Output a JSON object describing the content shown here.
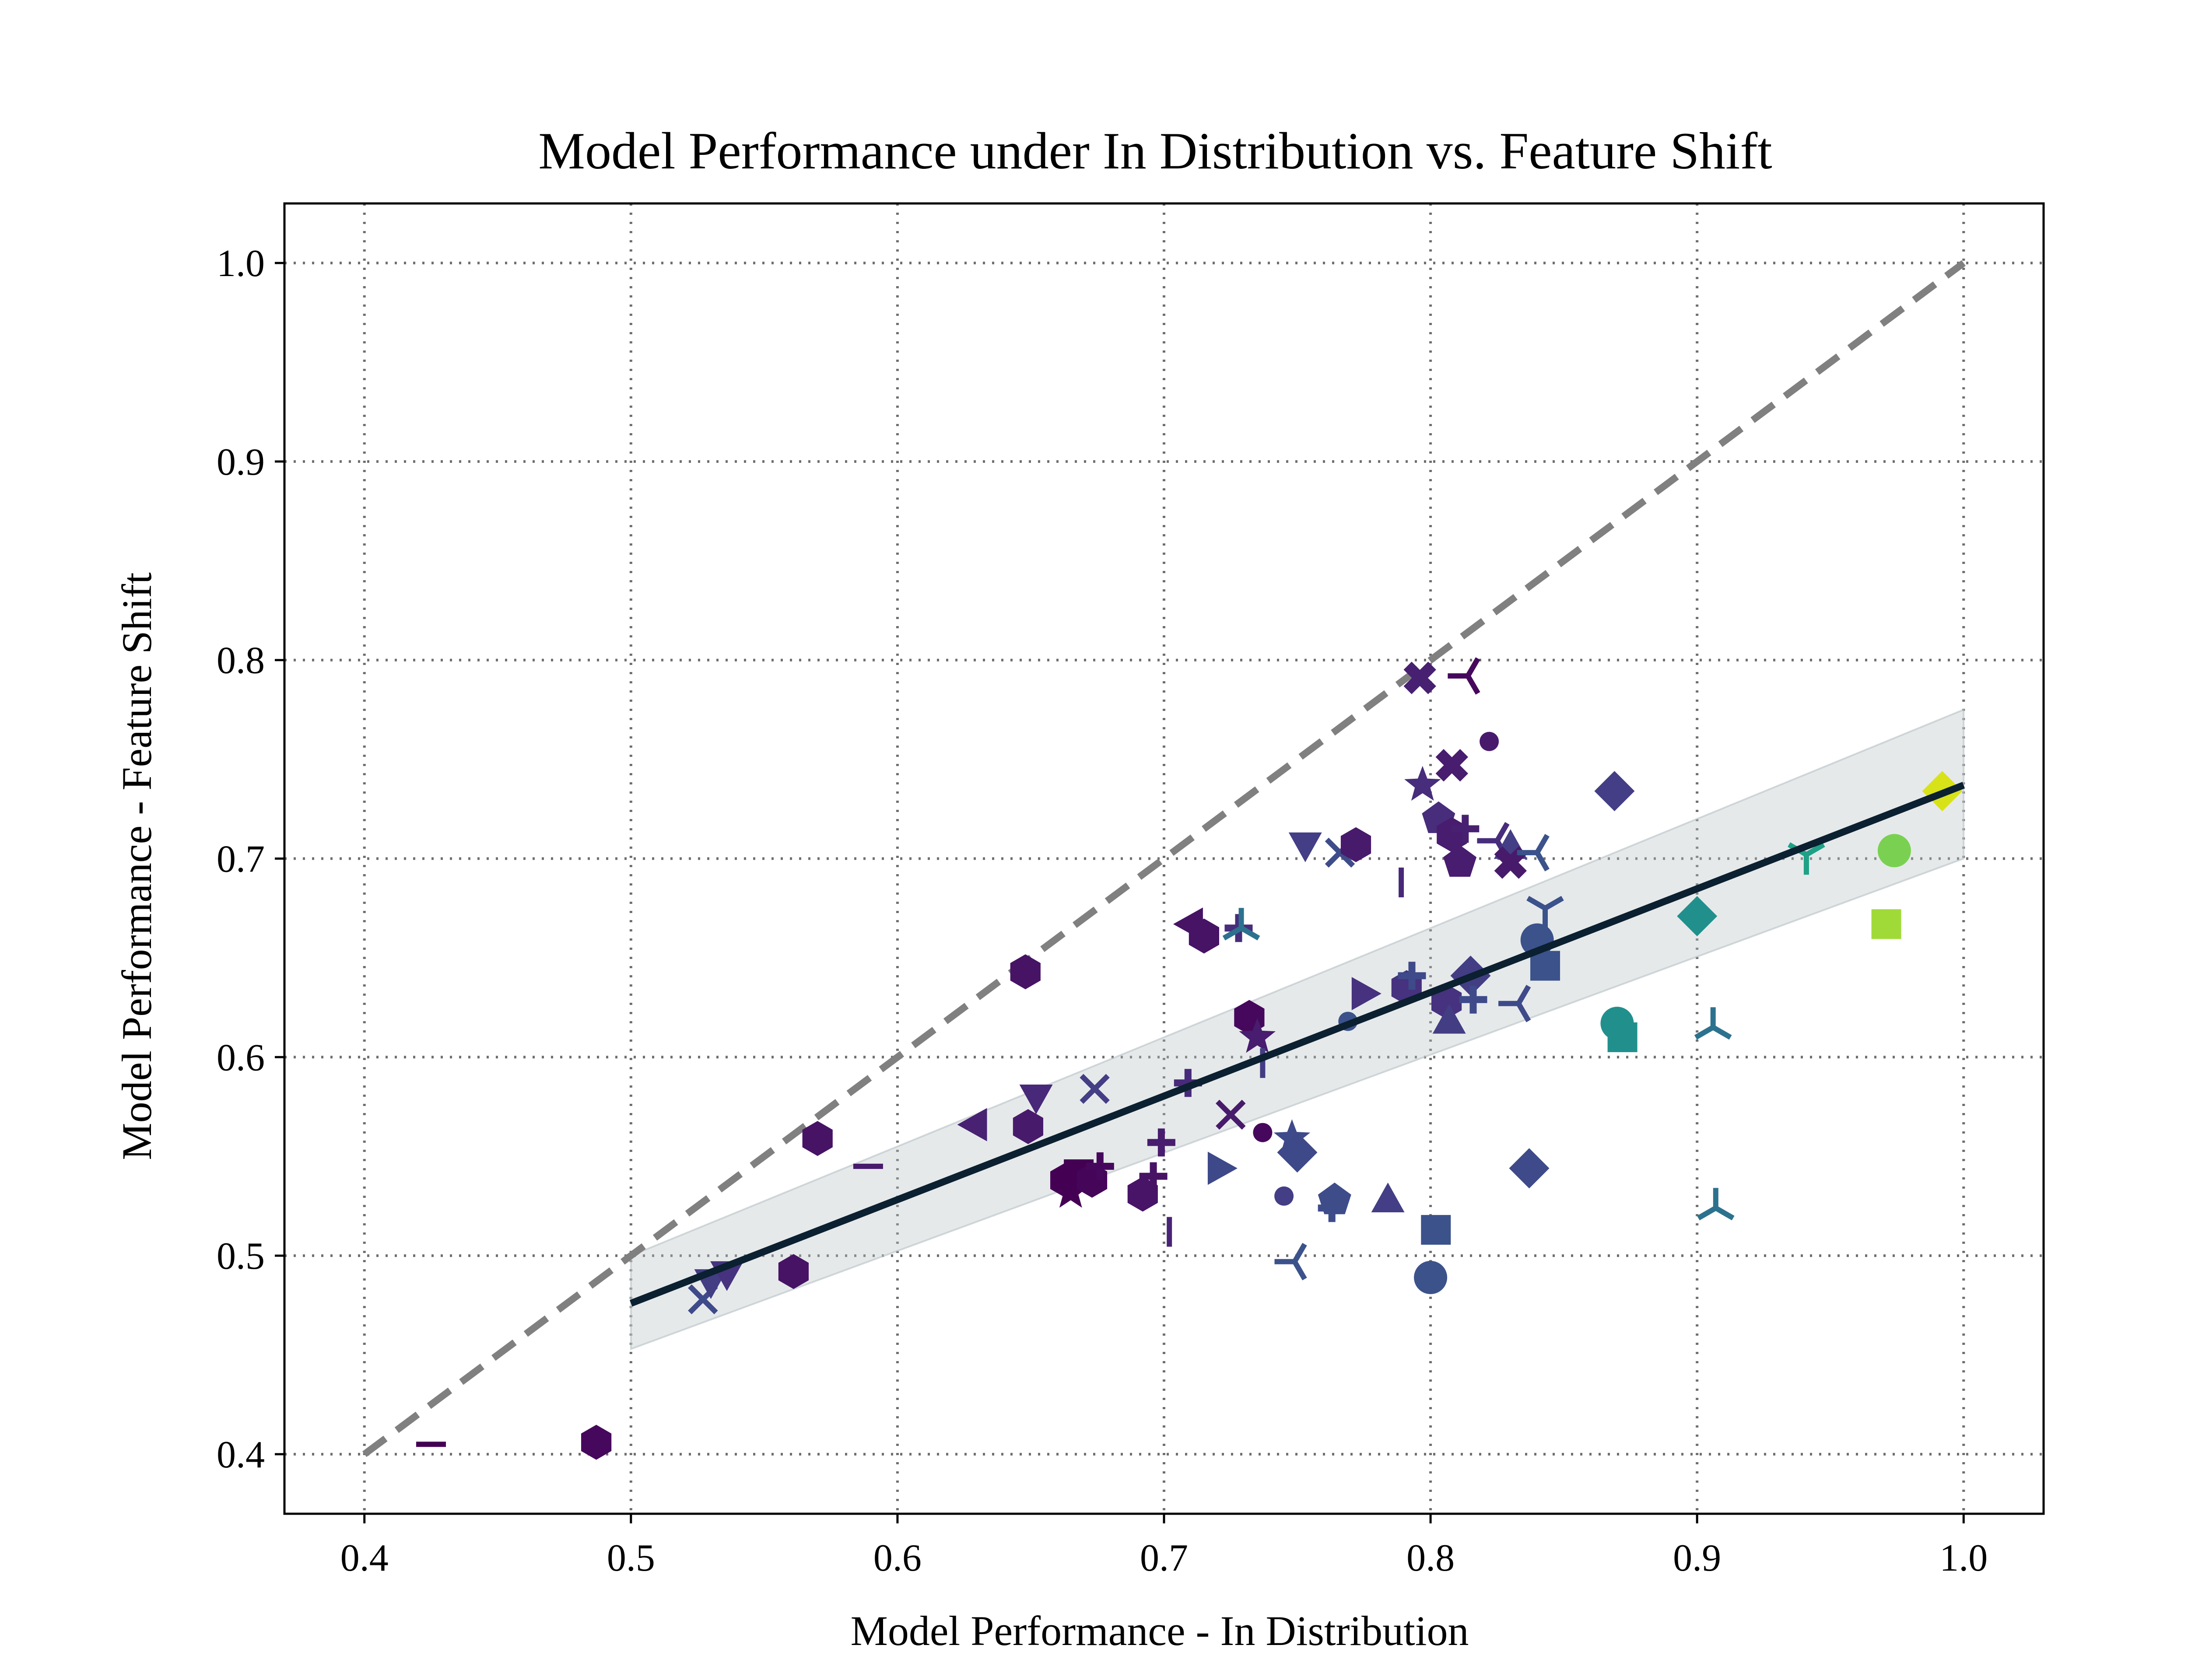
{
  "chart_data": {
    "type": "scatter",
    "title": "Model Performance under In Distribution vs. Feature Shift",
    "xlabel": "Model Performance - In Distribution",
    "ylabel": "Model Performance - Feature Shift",
    "xlim": [
      0.37,
      1.03
    ],
    "ylim": [
      0.37,
      1.03
    ],
    "xticks": [
      "0.4",
      "0.5",
      "0.6",
      "0.7",
      "0.8",
      "0.9",
      "1.0"
    ],
    "yticks": [
      "0.4",
      "0.5",
      "0.6",
      "0.7",
      "0.8",
      "0.9",
      "1.0"
    ],
    "grid": true,
    "identity_line": {
      "x": [
        0.4,
        1.0
      ],
      "y": [
        0.4,
        1.0
      ],
      "color": "#808080",
      "style": "dashed"
    },
    "regression_line": {
      "x": [
        0.5,
        1.0
      ],
      "y": [
        0.476,
        0.737
      ],
      "color": "#0b2030"
    },
    "confidence_band": {
      "x": [
        0.5,
        1.0
      ],
      "upper": [
        0.5,
        0.775
      ],
      "lower": [
        0.453,
        0.7
      ],
      "color": "#b7c1c4"
    },
    "points": [
      {
        "x": 0.425,
        "y": 0.405,
        "marker": "hline",
        "color": "#440154"
      },
      {
        "x": 0.487,
        "y": 0.406,
        "marker": "hexagon",
        "color": "#46085c"
      },
      {
        "x": 0.527,
        "y": 0.478,
        "marker": "x",
        "color": "#3e4a89"
      },
      {
        "x": 0.53,
        "y": 0.487,
        "marker": "triangle-down",
        "color": "#433d84"
      },
      {
        "x": 0.536,
        "y": 0.491,
        "marker": "triangle-down",
        "color": "#46327e"
      },
      {
        "x": 0.561,
        "y": 0.492,
        "marker": "hexagon",
        "color": "#471365"
      },
      {
        "x": 0.57,
        "y": 0.559,
        "marker": "hexagon",
        "color": "#471365"
      },
      {
        "x": 0.589,
        "y": 0.545,
        "marker": "hline",
        "color": "#481a6c"
      },
      {
        "x": 0.629,
        "y": 0.566,
        "marker": "triangle-left",
        "color": "#482173"
      },
      {
        "x": 0.648,
        "y": 0.643,
        "marker": "hexagon",
        "color": "#471365"
      },
      {
        "x": 0.649,
        "y": 0.565,
        "marker": "hexagon",
        "color": "#481a6c"
      },
      {
        "x": 0.652,
        "y": 0.58,
        "marker": "triangle-down",
        "color": "#482878"
      },
      {
        "x": 0.663,
        "y": 0.538,
        "marker": "hexagon",
        "color": "#440154"
      },
      {
        "x": 0.665,
        "y": 0.532,
        "marker": "star",
        "color": "#440154"
      },
      {
        "x": 0.668,
        "y": 0.541,
        "marker": "square",
        "color": "#440154"
      },
      {
        "x": 0.673,
        "y": 0.538,
        "marker": "hexagon",
        "color": "#450559"
      },
      {
        "x": 0.676,
        "y": 0.545,
        "marker": "plus",
        "color": "#46085c"
      },
      {
        "x": 0.674,
        "y": 0.584,
        "marker": "x",
        "color": "#433e85"
      },
      {
        "x": 0.692,
        "y": 0.531,
        "marker": "hexagon",
        "color": "#481467"
      },
      {
        "x": 0.696,
        "y": 0.54,
        "marker": "plus",
        "color": "#471365"
      },
      {
        "x": 0.699,
        "y": 0.557,
        "marker": "plus",
        "color": "#481c6e"
      },
      {
        "x": 0.702,
        "y": 0.512,
        "marker": "vline",
        "color": "#482475"
      },
      {
        "x": 0.709,
        "y": 0.587,
        "marker": "plus",
        "color": "#472a7a"
      },
      {
        "x": 0.71,
        "y": 0.667,
        "marker": "triangle-left",
        "color": "#471365"
      },
      {
        "x": 0.715,
        "y": 0.661,
        "marker": "hexagon",
        "color": "#471365"
      },
      {
        "x": 0.721,
        "y": 0.544,
        "marker": "triangle-right",
        "color": "#3e4989"
      },
      {
        "x": 0.725,
        "y": 0.571,
        "marker": "x",
        "color": "#481a6c"
      },
      {
        "x": 0.728,
        "y": 0.665,
        "marker": "plus",
        "color": "#472d7b"
      },
      {
        "x": 0.729,
        "y": 0.665,
        "marker": "tri-down",
        "color": "#2c728e"
      },
      {
        "x": 0.732,
        "y": 0.62,
        "marker": "hexagon",
        "color": "#46085c"
      },
      {
        "x": 0.735,
        "y": 0.61,
        "marker": "star",
        "color": "#481c6e"
      },
      {
        "x": 0.737,
        "y": 0.562,
        "marker": "circle-small",
        "color": "#46085c"
      },
      {
        "x": 0.737,
        "y": 0.597,
        "marker": "vline",
        "color": "#433d84"
      },
      {
        "x": 0.745,
        "y": 0.53,
        "marker": "circle-small",
        "color": "#433e85"
      },
      {
        "x": 0.748,
        "y": 0.559,
        "marker": "star",
        "color": "#3e4a89"
      },
      {
        "x": 0.749,
        "y": 0.497,
        "marker": "tri-right",
        "color": "#3b528b"
      },
      {
        "x": 0.75,
        "y": 0.552,
        "marker": "diamond",
        "color": "#3e4989"
      },
      {
        "x": 0.753,
        "y": 0.707,
        "marker": "triangle-down",
        "color": "#433e85"
      },
      {
        "x": 0.763,
        "y": 0.524,
        "marker": "plus",
        "color": "#3e4c8a"
      },
      {
        "x": 0.764,
        "y": 0.528,
        "marker": "pentagon",
        "color": "#3e4c8a"
      },
      {
        "x": 0.766,
        "y": 0.703,
        "marker": "x",
        "color": "#3e4c8a"
      },
      {
        "x": 0.769,
        "y": 0.618,
        "marker": "circle-small",
        "color": "#3b528b"
      },
      {
        "x": 0.772,
        "y": 0.707,
        "marker": "hexagon",
        "color": "#481a6c"
      },
      {
        "x": 0.775,
        "y": 0.632,
        "marker": "triangle-right",
        "color": "#46327e"
      },
      {
        "x": 0.784,
        "y": 0.528,
        "marker": "triangle-up",
        "color": "#433e85"
      },
      {
        "x": 0.789,
        "y": 0.688,
        "marker": "vline",
        "color": "#482878"
      },
      {
        "x": 0.791,
        "y": 0.635,
        "marker": "hexagon",
        "color": "#46327e"
      },
      {
        "x": 0.793,
        "y": 0.641,
        "marker": "plus",
        "color": "#3e4a89"
      },
      {
        "x": 0.796,
        "y": 0.791,
        "marker": "x-filled",
        "color": "#482071"
      },
      {
        "x": 0.797,
        "y": 0.737,
        "marker": "star",
        "color": "#472d7b"
      },
      {
        "x": 0.8,
        "y": 0.489,
        "marker": "circle",
        "color": "#3b528b"
      },
      {
        "x": 0.802,
        "y": 0.513,
        "marker": "square",
        "color": "#3b528b"
      },
      {
        "x": 0.803,
        "y": 0.72,
        "marker": "pentagon",
        "color": "#472d7b"
      },
      {
        "x": 0.806,
        "y": 0.628,
        "marker": "hexagon",
        "color": "#46327e"
      },
      {
        "x": 0.807,
        "y": 0.618,
        "marker": "triangle-up",
        "color": "#433d84"
      },
      {
        "x": 0.808,
        "y": 0.747,
        "marker": "x-filled",
        "color": "#481c6e"
      },
      {
        "x": 0.808,
        "y": 0.712,
        "marker": "hexagon",
        "color": "#481c6e"
      },
      {
        "x": 0.811,
        "y": 0.698,
        "marker": "pentagon",
        "color": "#481c6e"
      },
      {
        "x": 0.813,
        "y": 0.715,
        "marker": "plus",
        "color": "#482071"
      },
      {
        "x": 0.814,
        "y": 0.792,
        "marker": "tri-right",
        "color": "#46085c"
      },
      {
        "x": 0.815,
        "y": 0.641,
        "marker": "diamond",
        "color": "#433d84"
      },
      {
        "x": 0.816,
        "y": 0.629,
        "marker": "plus",
        "color": "#3e4a89"
      },
      {
        "x": 0.822,
        "y": 0.759,
        "marker": "circle-small",
        "color": "#481a6c"
      },
      {
        "x": 0.825,
        "y": 0.709,
        "marker": "tri-right",
        "color": "#472d7b"
      },
      {
        "x": 0.83,
        "y": 0.706,
        "marker": "triangle-up",
        "color": "#433e85"
      },
      {
        "x": 0.83,
        "y": 0.698,
        "marker": "x-filled",
        "color": "#481a6c"
      },
      {
        "x": 0.833,
        "y": 0.627,
        "marker": "tri-right",
        "color": "#3e4a89"
      },
      {
        "x": 0.837,
        "y": 0.544,
        "marker": "diamond",
        "color": "#3e4a89"
      },
      {
        "x": 0.84,
        "y": 0.703,
        "marker": "tri-right",
        "color": "#3b528b"
      },
      {
        "x": 0.84,
        "y": 0.659,
        "marker": "circle",
        "color": "#3b528b"
      },
      {
        "x": 0.843,
        "y": 0.646,
        "marker": "square",
        "color": "#3b528b"
      },
      {
        "x": 0.843,
        "y": 0.675,
        "marker": "tri-up",
        "color": "#3b528b"
      },
      {
        "x": 0.869,
        "y": 0.734,
        "marker": "diamond",
        "color": "#433e85"
      },
      {
        "x": 0.87,
        "y": 0.617,
        "marker": "circle",
        "color": "#21908d"
      },
      {
        "x": 0.872,
        "y": 0.61,
        "marker": "square",
        "color": "#21908d"
      },
      {
        "x": 0.9,
        "y": 0.671,
        "marker": "diamond",
        "color": "#21908d"
      },
      {
        "x": 0.906,
        "y": 0.615,
        "marker": "tri-down",
        "color": "#2c728e"
      },
      {
        "x": 0.907,
        "y": 0.524,
        "marker": "tri-down",
        "color": "#2c728e"
      },
      {
        "x": 0.941,
        "y": 0.702,
        "marker": "tri-up",
        "color": "#1fa187"
      },
      {
        "x": 0.971,
        "y": 0.667,
        "marker": "square",
        "color": "#a0da39"
      },
      {
        "x": 0.974,
        "y": 0.704,
        "marker": "circle",
        "color": "#7ad151"
      },
      {
        "x": 0.992,
        "y": 0.734,
        "marker": "diamond",
        "color": "#d8e219"
      }
    ]
  }
}
